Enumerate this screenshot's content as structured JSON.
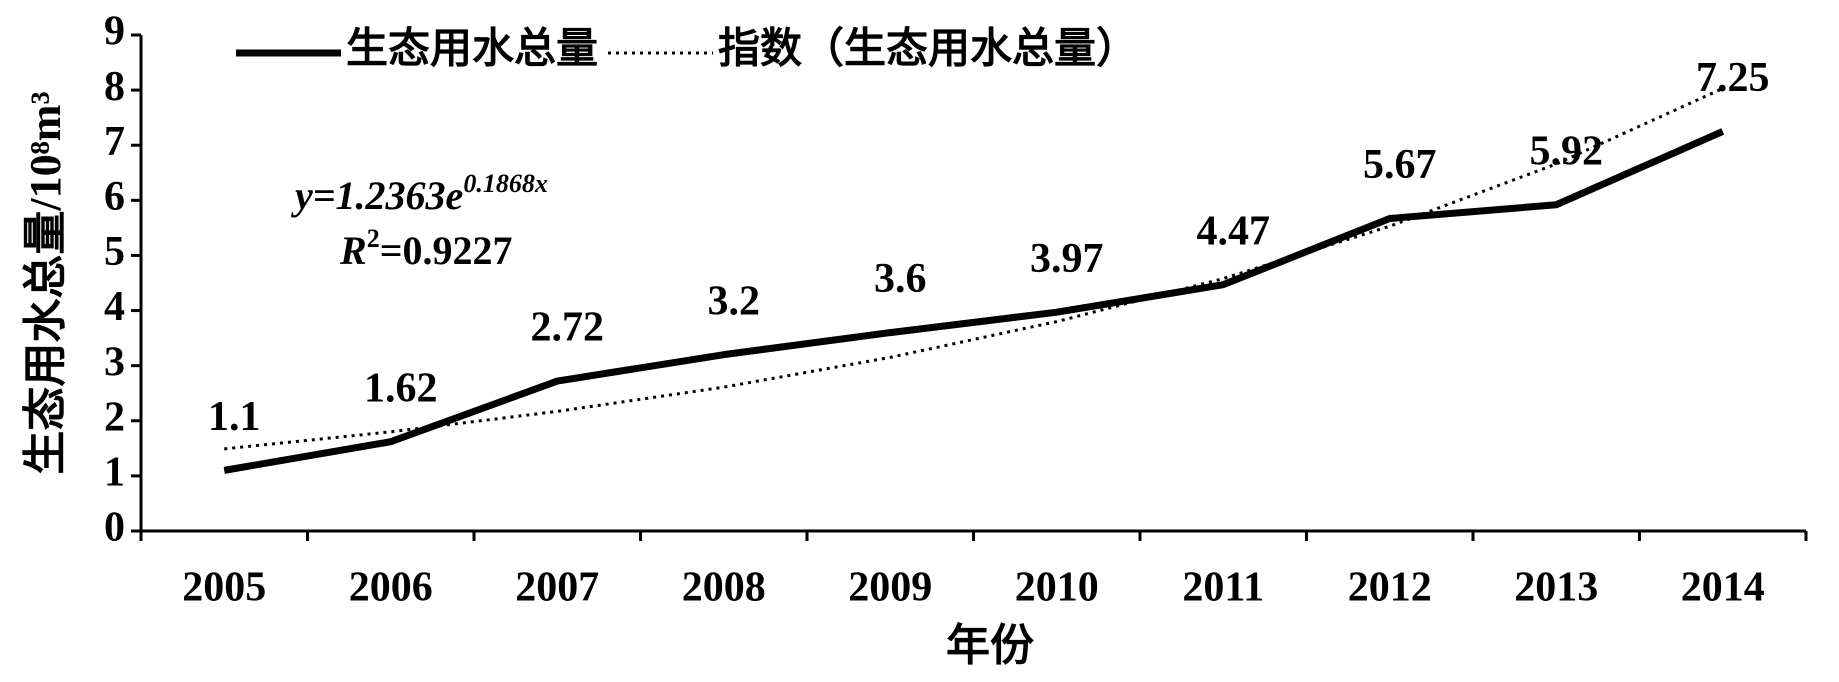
{
  "chart_data": {
    "type": "line",
    "xlabel": "年份",
    "ylabel": "生态用水总量/10⁸m³",
    "categories": [
      "2005",
      "2006",
      "2007",
      "2008",
      "2009",
      "2010",
      "2011",
      "2012",
      "2013",
      "2014"
    ],
    "series": [
      {
        "name": "生态用水总量",
        "color": "#000000",
        "style": "solid",
        "values": [
          1.1,
          1.62,
          2.72,
          3.2,
          3.6,
          3.97,
          4.47,
          5.67,
          5.92,
          7.25
        ],
        "data_labels": true
      },
      {
        "name": "指数（生态用水总量）",
        "color": "#000000",
        "style": "dotted",
        "values": [
          1.49,
          1.8,
          2.17,
          2.61,
          3.15,
          3.8,
          4.58,
          5.53,
          6.66,
          8.03
        ],
        "data_labels": false
      }
    ],
    "ylim": [
      0,
      9
    ],
    "yticks": [
      0,
      1,
      2,
      3,
      4,
      5,
      6,
      7,
      8,
      9
    ],
    "grid": false,
    "legend": "top-left",
    "equation": {
      "text": "y=1.2363e",
      "exponent": "0.1868x"
    },
    "r_squared": {
      "symbol": "R",
      "exponent": "2",
      "text": "=0.9227"
    }
  }
}
